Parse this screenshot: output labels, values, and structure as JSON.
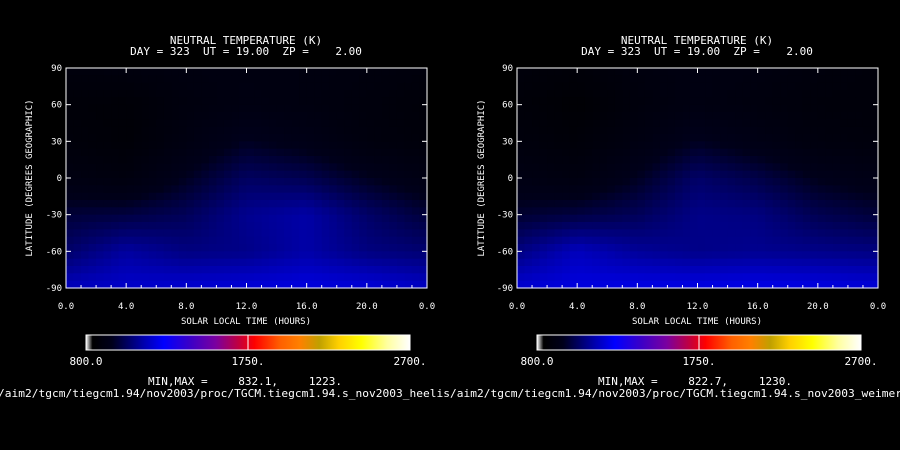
{
  "chart_data": [
    {
      "type": "heatmap",
      "title": "NEUTRAL TEMPERATURE (K)",
      "subtitle": "DAY = 323  UT = 19.00  ZP =    2.00",
      "xlabel": "SOLAR LOCAL TIME (HOURS)",
      "ylabel": "LATITUDE (DEGREES GEOGRAPHIC)",
      "x_ticks": [
        "0.0",
        "4.0",
        "8.0",
        "12.0",
        "16.0",
        "20.0",
        "0.0"
      ],
      "y_ticks": [
        "90",
        "60",
        "30",
        "0",
        "-30",
        "-60",
        "-90"
      ],
      "xlim": [
        0,
        24
      ],
      "ylim": [
        -90,
        90
      ],
      "colorbar": {
        "min_label": "800.0",
        "mid_label": "1750.",
        "max_label": "2700.",
        "range": [
          800,
          2700
        ]
      },
      "minmax_label": "MIN,MAX =",
      "min_value": "832.1,",
      "max_value": "1223.",
      "value_grid": {
        "lat": [
          90,
          60,
          30,
          0,
          -30,
          -60,
          -90
        ],
        "slt": [
          0,
          4,
          8,
          12,
          16,
          20,
          24
        ],
        "values": [
          [
            870,
            880,
            890,
            895,
            890,
            880,
            870
          ],
          [
            845,
            838,
            880,
            900,
            890,
            870,
            850
          ],
          [
            860,
            840,
            900,
            960,
            930,
            880,
            860
          ],
          [
            900,
            880,
            960,
            1040,
            1020,
            960,
            910
          ],
          [
            990,
            1000,
            1030,
            1100,
            1130,
            1050,
            990
          ],
          [
            1050,
            1120,
            1080,
            1090,
            1130,
            1080,
            1060
          ],
          [
            1160,
            1180,
            1190,
            1200,
            1210,
            1200,
            1170
          ]
        ]
      },
      "source_path": "/aim2/tgcm/tiegcm1.94/nov2003/proc/TGCM.tiegcm1.94.s_nov2003_heelis"
    },
    {
      "type": "heatmap",
      "title": "NEUTRAL TEMPERATURE (K)",
      "subtitle": "DAY = 323  UT = 19.00  ZP =    2.00",
      "xlabel": "SOLAR LOCAL TIME (HOURS)",
      "ylabel": "LATITUDE (DEGREES GEOGRAPHIC)",
      "x_ticks": [
        "0.0",
        "4.0",
        "8.0",
        "12.0",
        "16.0",
        "20.0",
        "0.0"
      ],
      "y_ticks": [
        "90",
        "60",
        "30",
        "0",
        "-30",
        "-60",
        "-90"
      ],
      "xlim": [
        0,
        24
      ],
      "ylim": [
        -90,
        90
      ],
      "colorbar": {
        "min_label": "800.0",
        "mid_label": "1750.",
        "max_label": "2700.",
        "range": [
          800,
          2700
        ]
      },
      "minmax_label": "MIN,MAX =",
      "min_value": "822.7,",
      "max_value": "1230.",
      "value_grid": {
        "lat": [
          90,
          60,
          30,
          0,
          -30,
          -60,
          -90
        ],
        "slt": [
          0,
          4,
          8,
          12,
          16,
          20,
          24
        ],
        "values": [
          [
            860,
            850,
            880,
            900,
            890,
            870,
            860
          ],
          [
            850,
            825,
            870,
            900,
            880,
            860,
            855
          ],
          [
            870,
            850,
            900,
            960,
            920,
            880,
            870
          ],
          [
            910,
            890,
            960,
            1050,
            1010,
            950,
            920
          ],
          [
            980,
            1000,
            1030,
            1090,
            1080,
            1020,
            990
          ],
          [
            1080,
            1160,
            1110,
            1090,
            1100,
            1090,
            1080
          ],
          [
            1190,
            1210,
            1220,
            1220,
            1225,
            1215,
            1200
          ]
        ]
      },
      "source_path": "/aim2/tgcm/tiegcm1.94/nov2003/proc/TGCM.tiegcm1.94.s_nov2003_weimer"
    }
  ],
  "colors": {
    "background": "#000000",
    "foreground": "#ffffff",
    "colormap": [
      "#000000",
      "#0000ff",
      "#7a00a0",
      "#ff0000",
      "#ff8000",
      "#ffff00",
      "#ffffff"
    ]
  }
}
